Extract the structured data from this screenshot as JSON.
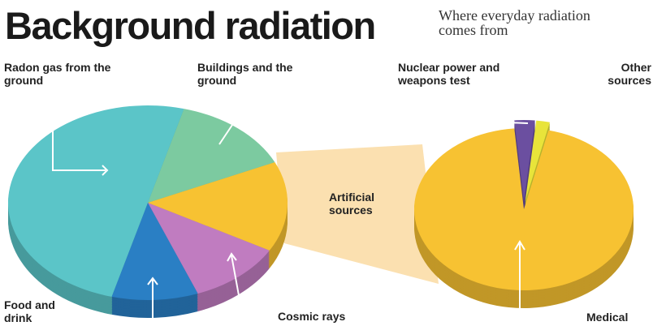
{
  "chart_data": [
    {
      "type": "pie",
      "title": "Background radiation",
      "subtitle": "Where everyday radiation comes from",
      "categories": [
        "Buildings and the ground",
        "Artificial sources",
        "Cosmic rays",
        "Food and drink",
        "Radon gas from the ground"
      ],
      "values": [
        14,
        15,
        11,
        10,
        50
      ],
      "colors": [
        "#7ccaa0",
        "#f7c232",
        "#c07cc0",
        "#2a7fc4",
        "#5bc5c8"
      ]
    },
    {
      "type": "pie",
      "categories": [
        "Nuclear power and weapons test",
        "Other sources",
        "Medical"
      ],
      "values": [
        3,
        2,
        95
      ],
      "colors": [
        "#6b4fa0",
        "#e8e43a",
        "#f7c232"
      ]
    }
  ]
}
